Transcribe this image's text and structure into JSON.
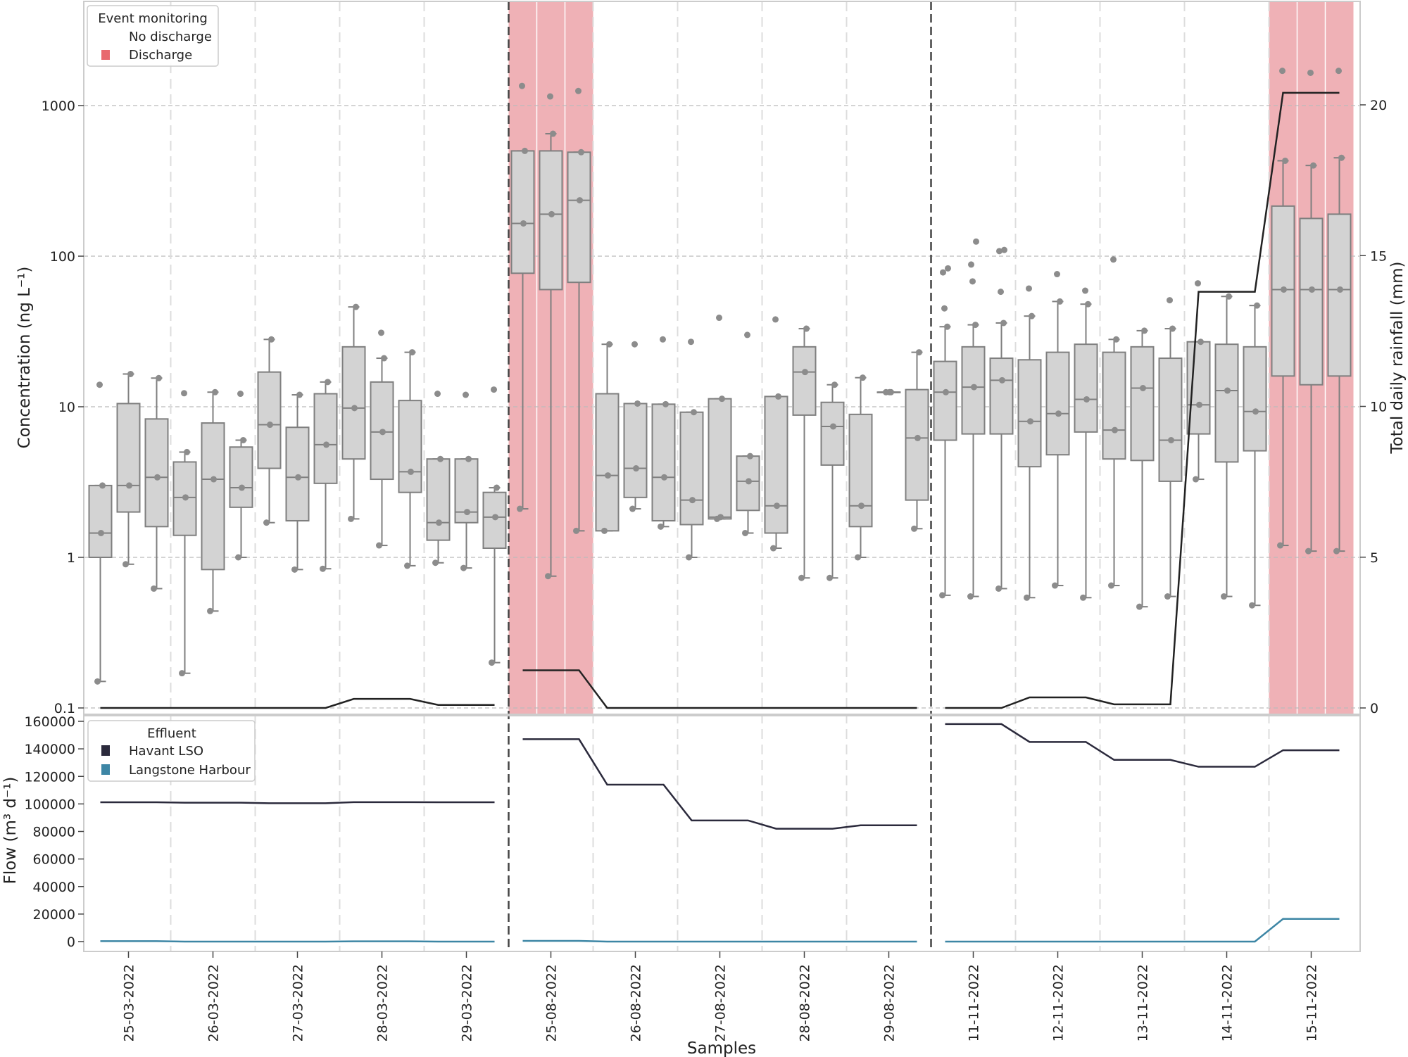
{
  "chart_data": {
    "type": "box+line",
    "xlabel": "Samples",
    "x_tick_labels": [
      "25-03-2022",
      "26-03-2022",
      "27-03-2022",
      "28-03-2022",
      "29-03-2022",
      "25-08-2022",
      "26-08-2022",
      "27-08-2022",
      "28-08-2022",
      "29-08-2022",
      "11-11-2022",
      "12-11-2022",
      "13-11-2022",
      "14-11-2022",
      "15-11-2022"
    ],
    "top_panel": {
      "ylabel": "Concentration (ng L⁻¹)",
      "yscale": "log",
      "ylim": [
        0.09,
        4900
      ],
      "y_ticks": [
        {
          "v": 0.1,
          "label": "0.1"
        },
        {
          "v": 1,
          "label": "1"
        },
        {
          "v": 10,
          "label": "10"
        },
        {
          "v": 100,
          "label": "100"
        },
        {
          "v": 1000,
          "label": "1000"
        }
      ],
      "y2label": "Total daily rainfall (mm)",
      "y2lim": [
        -0.2,
        23.4
      ],
      "y2_ticks": [
        {
          "v": 0,
          "label": "0"
        },
        {
          "v": 5,
          "label": "5"
        },
        {
          "v": 10,
          "label": "10"
        },
        {
          "v": 15,
          "label": "15"
        },
        {
          "v": 20,
          "label": "20"
        }
      ],
      "legend": {
        "title": "Event monitoring",
        "items": [
          {
            "label": "No discharge",
            "color": "#ffffff"
          },
          {
            "label": "Discharge",
            "color": "#e8696e"
          }
        ],
        "placement": "top-left"
      },
      "discharge_slots": [
        [
          15,
          17
        ],
        [
          42,
          44
        ]
      ],
      "boxes": [
        {
          "s": [
            0.15,
            1.0,
            1.45,
            3.0,
            3.0
          ],
          "out": [
            14
          ]
        },
        {
          "s": [
            0.9,
            2.0,
            3.0,
            10.5,
            16.5
          ],
          "out": []
        },
        {
          "s": [
            0.62,
            1.6,
            3.4,
            8.3,
            15.5
          ],
          "out": []
        },
        {
          "s": [
            0.17,
            1.4,
            2.5,
            4.3,
            5.0
          ],
          "out": [
            12.3
          ]
        },
        {
          "s": [
            0.44,
            0.83,
            3.3,
            7.8,
            12.5
          ],
          "out": []
        },
        {
          "s": [
            1.0,
            2.15,
            2.9,
            5.4,
            6.0
          ],
          "out": [
            12.2
          ]
        },
        {
          "s": [
            1.7,
            3.9,
            7.6,
            17,
            28
          ],
          "out": []
        },
        {
          "s": [
            0.83,
            1.75,
            3.4,
            7.3,
            12
          ],
          "out": []
        },
        {
          "s": [
            0.84,
            3.1,
            5.6,
            12.2,
            14.6
          ],
          "out": []
        },
        {
          "s": [
            1.8,
            4.5,
            9.8,
            25,
            46
          ],
          "out": []
        },
        {
          "s": [
            1.2,
            3.3,
            6.8,
            14.6,
            21
          ],
          "out": [
            31
          ]
        },
        {
          "s": [
            0.88,
            2.7,
            3.7,
            11,
            23
          ],
          "out": []
        },
        {
          "s": [
            0.92,
            1.3,
            1.7,
            4.5,
            4.5
          ],
          "out": [
            12.2
          ]
        },
        {
          "s": [
            0.85,
            1.7,
            2.0,
            4.5,
            4.5
          ],
          "out": [
            12
          ]
        },
        {
          "s": [
            0.2,
            1.15,
            1.85,
            2.7,
            2.9
          ],
          "out": [
            13
          ]
        },
        {
          "s": [
            2.1,
            77,
            165,
            500,
            500
          ],
          "out": [
            1350
          ]
        },
        {
          "s": [
            0.75,
            60,
            190,
            500,
            650
          ],
          "out": [
            1150
          ]
        },
        {
          "s": [
            1.5,
            67,
            235,
            490,
            490
          ],
          "out": [
            1250
          ]
        },
        {
          "s": [
            1.5,
            1.5,
            3.5,
            12.2,
            26
          ],
          "out": []
        },
        {
          "s": [
            2.1,
            2.5,
            3.9,
            10.5,
            10.5
          ],
          "out": [
            26
          ]
        },
        {
          "s": [
            1.6,
            1.75,
            3.4,
            10.4,
            10.4
          ],
          "out": [
            28
          ]
        },
        {
          "s": [
            1.0,
            1.65,
            2.4,
            9.2,
            9.2
          ],
          "out": [
            27
          ]
        },
        {
          "s": [
            1.8,
            1.8,
            1.85,
            11.3,
            11.3
          ],
          "out": [
            39
          ]
        },
        {
          "s": [
            1.45,
            2.05,
            3.2,
            4.7,
            4.7
          ],
          "out": [
            30
          ]
        },
        {
          "s": [
            1.15,
            1.45,
            2.2,
            11.7,
            11.7
          ],
          "out": [
            38
          ]
        },
        {
          "s": [
            0.73,
            8.8,
            17,
            25,
            33
          ],
          "out": []
        },
        {
          "s": [
            0.73,
            4.1,
            7.4,
            10.7,
            14
          ],
          "out": []
        },
        {
          "s": [
            1.0,
            1.6,
            2.2,
            8.9,
            15.6
          ],
          "out": []
        },
        {
          "s": [
            12.5,
            12.5,
            12.5,
            12.5,
            12.5
          ],
          "out": []
        },
        {
          "s": [
            1.55,
            2.4,
            6.2,
            13,
            23
          ],
          "out": []
        },
        {
          "s": [
            0.56,
            6.0,
            12.5,
            20,
            34
          ],
          "out": [
            45,
            78,
            83
          ]
        },
        {
          "s": [
            0.55,
            6.6,
            13.5,
            25,
            35
          ],
          "out": [
            68,
            88,
            125
          ]
        },
        {
          "s": [
            0.62,
            6.6,
            15,
            21,
            36
          ],
          "out": [
            58,
            108,
            110
          ]
        },
        {
          "s": [
            0.54,
            4.0,
            8,
            20.5,
            40
          ],
          "out": [
            61
          ]
        },
        {
          "s": [
            0.65,
            4.8,
            9.0,
            23,
            50
          ],
          "out": [
            76
          ]
        },
        {
          "s": [
            0.54,
            6.8,
            11.2,
            26,
            48
          ],
          "out": [
            59
          ]
        },
        {
          "s": [
            0.65,
            4.5,
            7.0,
            23,
            28
          ],
          "out": [
            95
          ]
        },
        {
          "s": [
            0.47,
            4.4,
            13.3,
            25,
            32
          ],
          "out": []
        },
        {
          "s": [
            0.55,
            3.2,
            6.0,
            21,
            33
          ],
          "out": [
            51
          ]
        },
        {
          "s": [
            3.3,
            6.6,
            10.3,
            27,
            27
          ],
          "out": [
            66
          ]
        },
        {
          "s": [
            0.55,
            4.3,
            12.8,
            26,
            54
          ],
          "out": []
        },
        {
          "s": [
            0.48,
            5.1,
            9.3,
            25,
            47
          ],
          "out": []
        },
        {
          "s": [
            1.2,
            16,
            60,
            215,
            430
          ],
          "out": [
            1700
          ]
        },
        {
          "s": [
            1.1,
            14,
            60,
            178,
            400
          ],
          "out": [
            1650
          ]
        },
        {
          "s": [
            1.1,
            16,
            60,
            190,
            450
          ],
          "out": [
            1700
          ]
        }
      ],
      "rainfall_mm_by_day": [
        0,
        0,
        0,
        0.3,
        0.1,
        1.25,
        0,
        0,
        0,
        0,
        0,
        0.35,
        0.12,
        13.8,
        20.4
      ]
    },
    "bottom_panel": {
      "ylabel": "Flow (m³ d⁻¹)",
      "ylim": [
        -8000,
        165000
      ],
      "y_ticks": [
        {
          "v": 0,
          "label": "0"
        },
        {
          "v": 20000,
          "label": "20000"
        },
        {
          "v": 40000,
          "label": "40000"
        },
        {
          "v": 60000,
          "label": "60000"
        },
        {
          "v": 80000,
          "label": "80000"
        },
        {
          "v": 100000,
          "label": "100000"
        },
        {
          "v": 120000,
          "label": "120000"
        },
        {
          "v": 140000,
          "label": "140000"
        },
        {
          "v": 160000,
          "label": "160000"
        }
      ],
      "legend": {
        "title": "Effluent",
        "placement": "top-left"
      },
      "series": [
        {
          "name": "Havant LSO",
          "color": "#2b2a3c",
          "values_by_day": [
            101200,
            100900,
            100500,
            101300,
            101200,
            147000,
            114000,
            88000,
            82000,
            84500,
            158000,
            145000,
            132000,
            127000,
            139000
          ]
        },
        {
          "name": "Langstone Harbour",
          "color": "#3d86a5",
          "values_by_day": [
            300,
            0,
            0,
            200,
            0,
            500,
            0,
            0,
            0,
            0,
            0,
            0,
            0,
            0,
            16500
          ]
        }
      ]
    }
  }
}
